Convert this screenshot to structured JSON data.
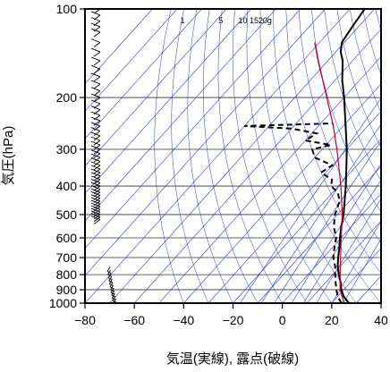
{
  "chart_data": {
    "type": "line",
    "chart_kind": "skew-T log-P diagram",
    "title": "",
    "xlabel": "気温(実線), 露点(破線)",
    "ylabel": "気圧(hPa)",
    "xlim": [
      -80,
      40
    ],
    "ylim": [
      1000,
      100
    ],
    "y_scale": "log",
    "x_ticks": [
      -80,
      -60,
      -40,
      -20,
      0,
      20,
      40
    ],
    "x_tick_labels": [
      "−80",
      "−60",
      "−40",
      "−20",
      "0",
      "20",
      "40"
    ],
    "y_ticks": [
      100,
      200,
      300,
      400,
      500,
      600,
      700,
      800,
      900,
      1000
    ],
    "y_tick_labels": [
      "100",
      "200",
      "300",
      "400",
      "500",
      "600",
      "700",
      "800",
      "900",
      "1000"
    ],
    "mixing_ratio_labels": [
      "1",
      "5",
      "10",
      "15",
      "20g"
    ],
    "grid": true,
    "colors": {
      "temperature": "#000000",
      "dewpoint": "#000000",
      "parcel": "#c00020",
      "background_lines": "#2a3bd6",
      "grid": "#333333",
      "wind_barbs": "#000000"
    },
    "series": [
      {
        "role": "temperature",
        "style": "solid",
        "points": [
          {
            "p": 1000,
            "t": 27
          },
          {
            "p": 950,
            "t": 22.5
          },
          {
            "p": 900,
            "t": 19
          },
          {
            "p": 850,
            "t": 16
          },
          {
            "p": 800,
            "t": 12.5
          },
          {
            "p": 750,
            "t": 9
          },
          {
            "p": 700,
            "t": 6
          },
          {
            "p": 650,
            "t": 3
          },
          {
            "p": 600,
            "t": -0.5
          },
          {
            "p": 550,
            "t": -4
          },
          {
            "p": 500,
            "t": -7.5
          },
          {
            "p": 450,
            "t": -12
          },
          {
            "p": 400,
            "t": -17
          },
          {
            "p": 350,
            "t": -23
          },
          {
            "p": 300,
            "t": -30
          },
          {
            "p": 250,
            "t": -39
          },
          {
            "p": 200,
            "t": -50
          },
          {
            "p": 175,
            "t": -57
          },
          {
            "p": 150,
            "t": -64
          },
          {
            "p": 140,
            "t": -68
          },
          {
            "p": 130,
            "t": -71
          },
          {
            "p": 120,
            "t": -72
          },
          {
            "p": 110,
            "t": -73
          },
          {
            "p": 100,
            "t": -74
          }
        ]
      },
      {
        "role": "dewpoint",
        "style": "dashed",
        "points": [
          {
            "p": 1000,
            "t": 24
          },
          {
            "p": 950,
            "t": 20
          },
          {
            "p": 900,
            "t": 17
          },
          {
            "p": 850,
            "t": 14
          },
          {
            "p": 800,
            "t": 11
          },
          {
            "p": 750,
            "t": 8
          },
          {
            "p": 700,
            "t": 4
          },
          {
            "p": 650,
            "t": 1
          },
          {
            "p": 600,
            "t": -2
          },
          {
            "p": 550,
            "t": -7
          },
          {
            "p": 500,
            "t": -11
          },
          {
            "p": 450,
            "t": -14
          },
          {
            "p": 420,
            "t": -18
          },
          {
            "p": 400,
            "t": -23
          },
          {
            "p": 380,
            "t": -25
          },
          {
            "p": 360,
            "t": -32
          },
          {
            "p": 340,
            "t": -30
          },
          {
            "p": 320,
            "t": -40
          },
          {
            "p": 300,
            "t": -44
          },
          {
            "p": 290,
            "t": -38
          },
          {
            "p": 280,
            "t": -50
          },
          {
            "p": 265,
            "t": -48
          },
          {
            "p": 255,
            "t": -60
          },
          {
            "p": 250,
            "t": -80
          },
          {
            "p": 245,
            "t": -45
          }
        ]
      },
      {
        "role": "parcel",
        "style": "solid",
        "points": [
          {
            "p": 1000,
            "t": 25
          },
          {
            "p": 900,
            "t": 18.5
          },
          {
            "p": 800,
            "t": 13
          },
          {
            "p": 700,
            "t": 7
          },
          {
            "p": 600,
            "t": 0
          },
          {
            "p": 500,
            "t": -8
          },
          {
            "p": 400,
            "t": -19
          },
          {
            "p": 300,
            "t": -34
          },
          {
            "p": 250,
            "t": -44
          },
          {
            "p": 200,
            "t": -57
          },
          {
            "p": 150,
            "t": -74
          },
          {
            "p": 130,
            "t": -82
          }
        ]
      }
    ],
    "wind_barbs": {
      "x_position_t": -75,
      "levels_hpa": [
        100,
        105,
        110,
        115,
        120,
        130,
        140,
        150,
        160,
        170,
        180,
        190,
        200,
        210,
        220,
        230,
        240,
        250,
        260,
        270,
        280,
        290,
        300,
        310,
        320,
        330,
        340,
        350,
        360,
        370,
        380,
        390,
        400,
        410,
        420,
        430,
        440,
        450,
        460,
        470,
        480,
        490,
        500,
        510,
        520
      ],
      "lower_levels_hpa": [
        780,
        800,
        820,
        840,
        860,
        880,
        900,
        920,
        940,
        960,
        980,
        1000
      ]
    }
  }
}
